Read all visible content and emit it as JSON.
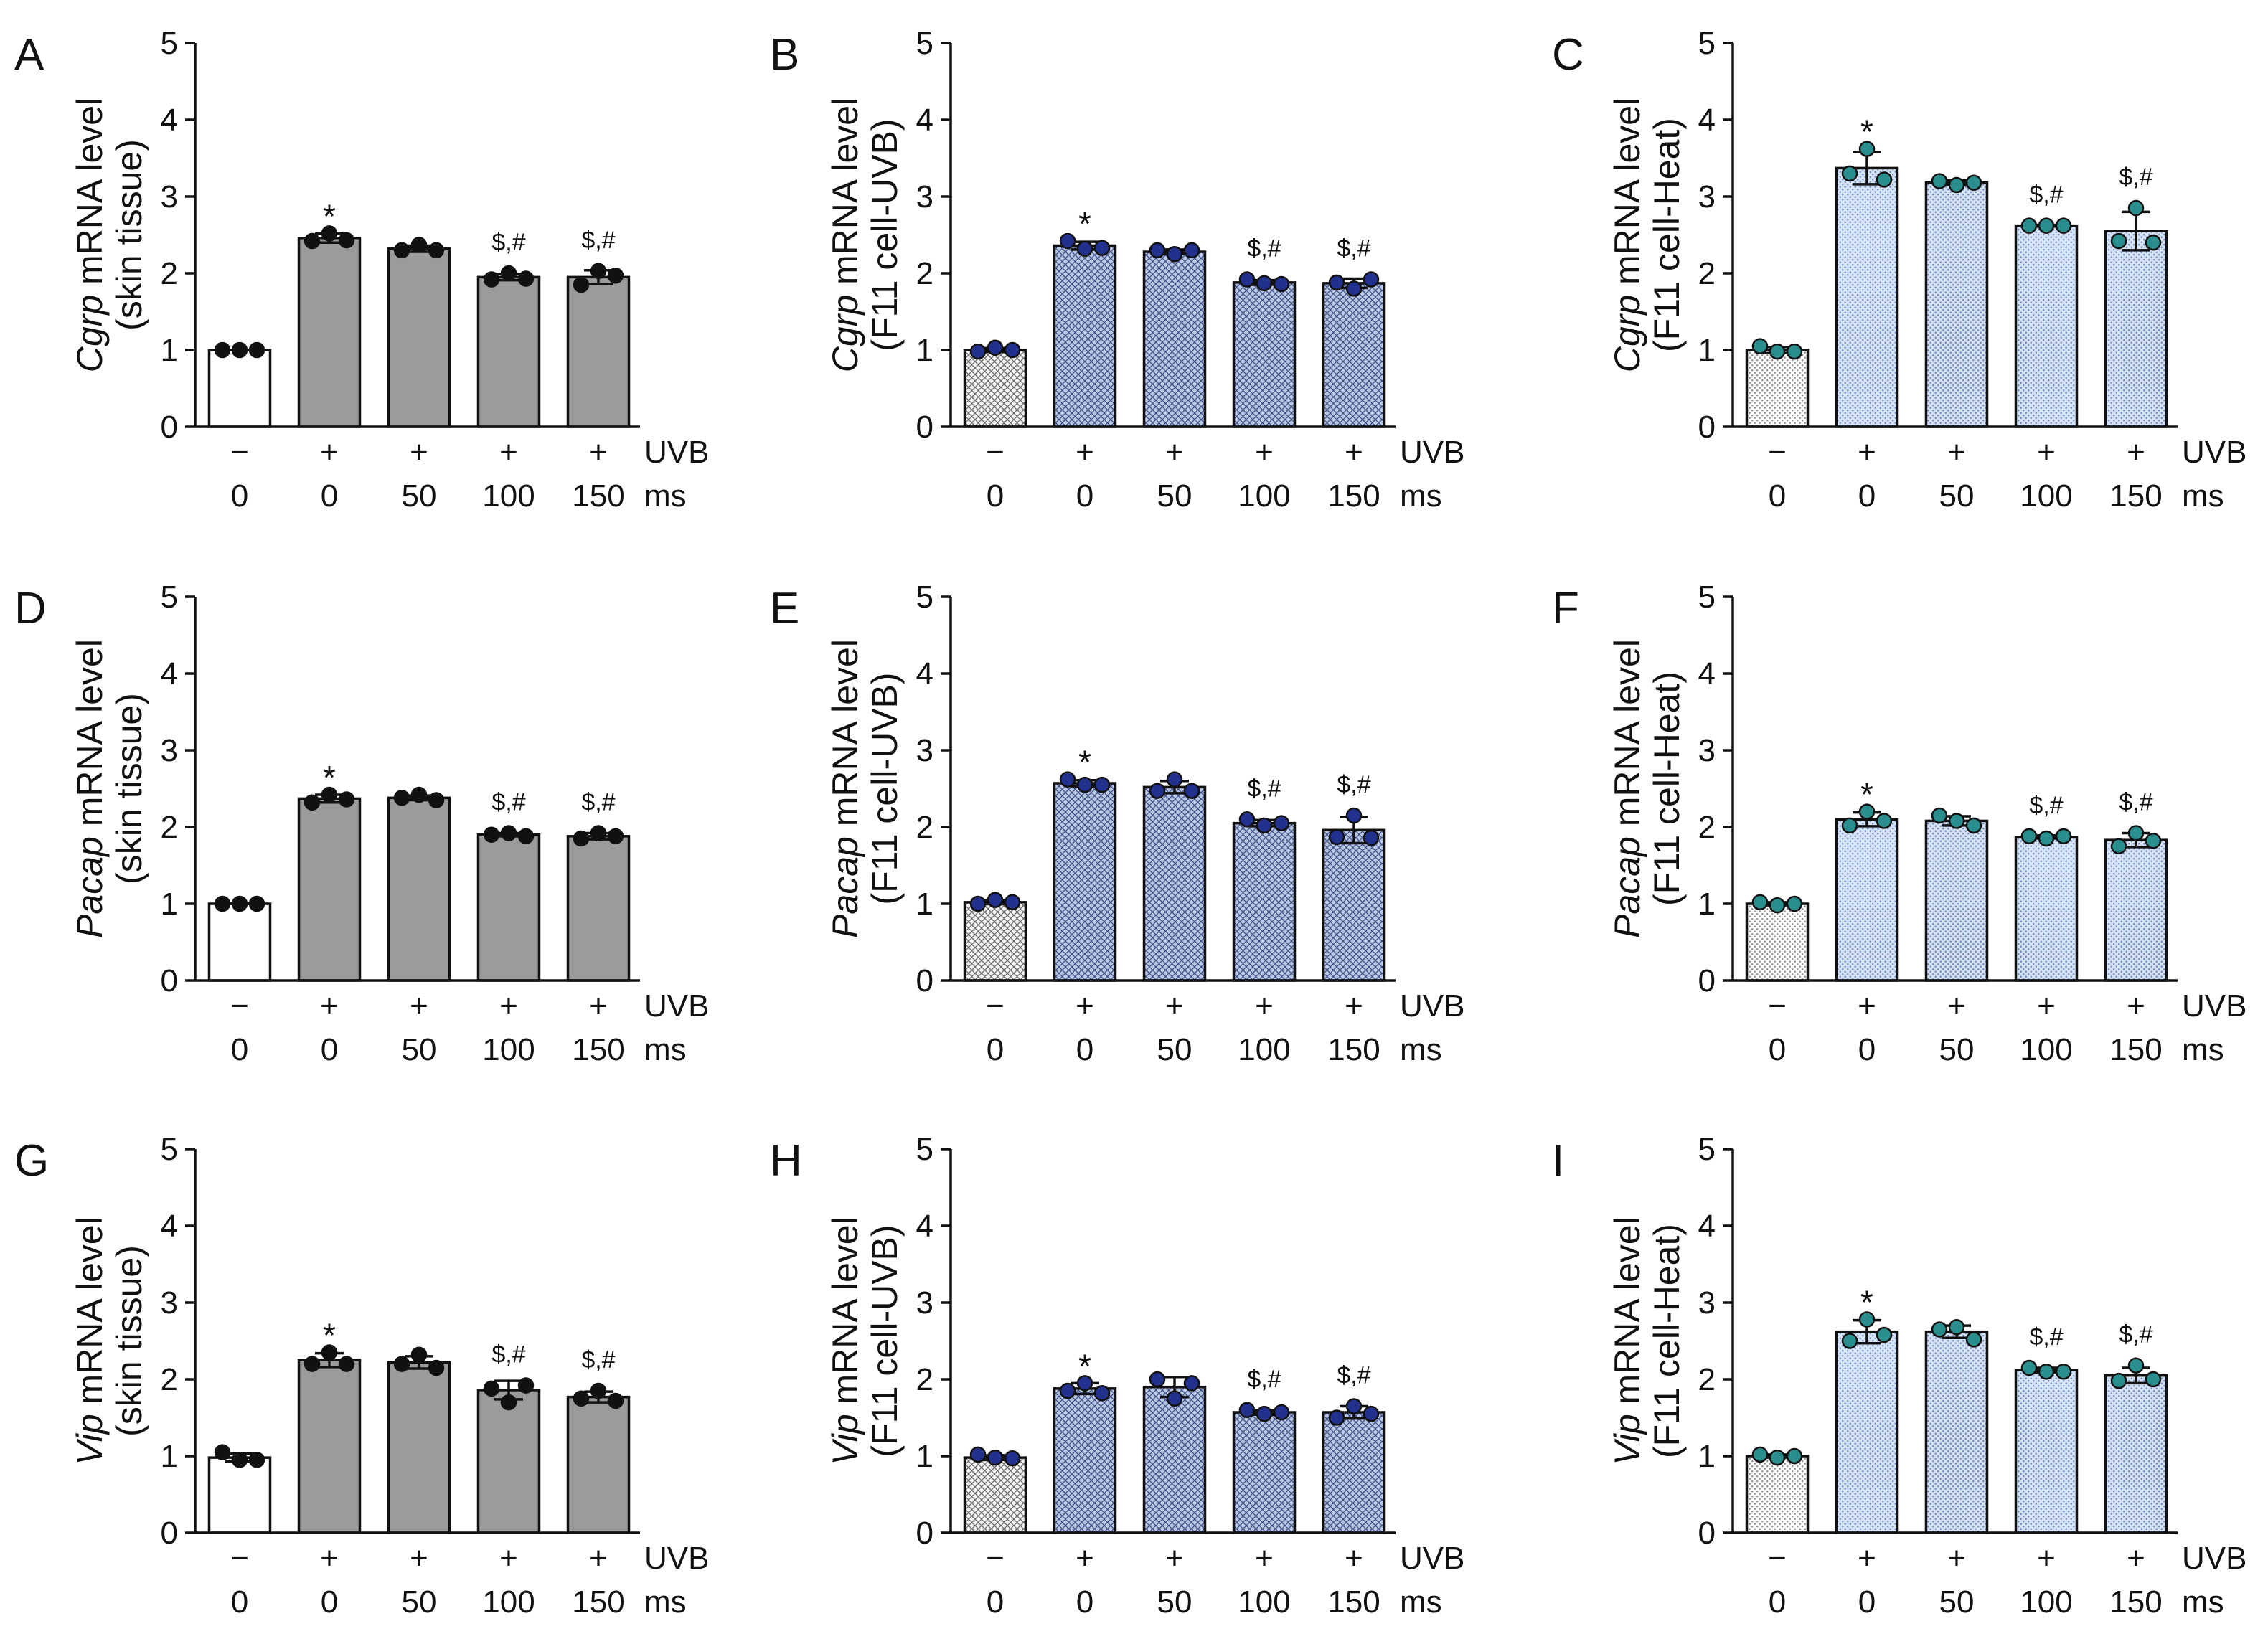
{
  "colors": {
    "skin_control": "#ffffff",
    "skin_treated": "#9b9b9b",
    "skin_dot": "#111111",
    "uvb_dot": "#23318e",
    "heat_dot": "#2b8e8e"
  },
  "chart_data": [
    {
      "panel": "A",
      "type": "bar",
      "gene": "Cgrp",
      "ylabel": "mRNA level",
      "sample": "(skin tissue)",
      "ylim": [
        0,
        5
      ],
      "yticks": [
        0,
        1,
        2,
        3,
        4,
        5
      ],
      "uvb": [
        "−",
        "+",
        "+",
        "+",
        "+"
      ],
      "uvb_label": "UVB",
      "ms": [
        "0",
        "0",
        "50",
        "100",
        "150"
      ],
      "ms_label": "ms",
      "values": [
        1.0,
        2.46,
        2.32,
        1.95,
        1.95
      ],
      "sd": [
        0.0,
        0.06,
        0.04,
        0.04,
        0.09
      ],
      "points": [
        [
          1.0,
          1.0,
          1.0
        ],
        [
          2.42,
          2.52,
          2.43
        ],
        [
          2.3,
          2.37,
          2.3
        ],
        [
          1.92,
          2.0,
          1.93
        ],
        [
          1.85,
          2.03,
          1.97
        ]
      ],
      "annotations": [
        null,
        "*",
        null,
        "$,#",
        "$,#"
      ]
    },
    {
      "panel": "B",
      "type": "bar",
      "gene": "Cgrp",
      "ylabel": "mRNA level",
      "sample": "(F11 cell-UVB)",
      "ylim": [
        0,
        5
      ],
      "yticks": [
        0,
        1,
        2,
        3,
        4,
        5
      ],
      "uvb": [
        "−",
        "+",
        "+",
        "+",
        "+"
      ],
      "uvb_label": "UVB",
      "ms": [
        "0",
        "0",
        "50",
        "100",
        "150"
      ],
      "ms_label": "ms",
      "values": [
        1.0,
        2.36,
        2.28,
        1.88,
        1.87
      ],
      "sd": [
        0.025,
        0.05,
        0.03,
        0.03,
        0.06
      ],
      "points": [
        [
          0.98,
          1.03,
          1.0
        ],
        [
          2.42,
          2.32,
          2.33
        ],
        [
          2.3,
          2.25,
          2.3
        ],
        [
          1.92,
          1.87,
          1.86
        ],
        [
          1.88,
          1.8,
          1.92
        ]
      ],
      "annotations": [
        null,
        "*",
        null,
        "$,#",
        "$,#"
      ]
    },
    {
      "panel": "C",
      "type": "bar",
      "gene": "Cgrp",
      "ylabel": "mRNA level",
      "sample": "(F11 cell-Heat)",
      "ylim": [
        0,
        5
      ],
      "yticks": [
        0,
        1,
        2,
        3,
        4,
        5
      ],
      "uvb": [
        "−",
        "+",
        "+",
        "+",
        "+"
      ],
      "uvb_label": "UVB",
      "ms": [
        "0",
        "0",
        "50",
        "100",
        "150"
      ],
      "ms_label": "ms",
      "values": [
        1.0,
        3.37,
        3.18,
        2.62,
        2.55
      ],
      "sd": [
        0.04,
        0.21,
        0.03,
        0.01,
        0.25
      ],
      "points": [
        [
          1.05,
          0.98,
          0.98
        ],
        [
          3.3,
          3.62,
          3.22
        ],
        [
          3.2,
          3.15,
          3.18
        ],
        [
          2.62,
          2.62,
          2.62
        ],
        [
          2.42,
          2.85,
          2.4
        ]
      ],
      "annotations": [
        null,
        "*",
        null,
        "$,#",
        "$,#"
      ]
    },
    {
      "panel": "D",
      "type": "bar",
      "gene": "Pacap",
      "ylabel": "mRNA level",
      "sample": "(skin tissue)",
      "ylim": [
        0,
        5
      ],
      "yticks": [
        0,
        1,
        2,
        3,
        4,
        5
      ],
      "uvb": [
        "−",
        "+",
        "+",
        "+",
        "+"
      ],
      "uvb_label": "UVB",
      "ms": [
        "0",
        "0",
        "50",
        "100",
        "150"
      ],
      "ms_label": "ms",
      "values": [
        1.0,
        2.37,
        2.38,
        1.9,
        1.88
      ],
      "sd": [
        0.0,
        0.05,
        0.03,
        0.02,
        0.04
      ],
      "points": [
        [
          1.0,
          1.0,
          1.0
        ],
        [
          2.32,
          2.42,
          2.36
        ],
        [
          2.38,
          2.42,
          2.35
        ],
        [
          1.9,
          1.92,
          1.88
        ],
        [
          1.85,
          1.92,
          1.88
        ]
      ],
      "annotations": [
        null,
        "*",
        null,
        "$,#",
        "$,#"
      ]
    },
    {
      "panel": "E",
      "type": "bar",
      "gene": "Pacap",
      "ylabel": "mRNA level",
      "sample": "(F11 cell-UVB)",
      "ylim": [
        0,
        5
      ],
      "yticks": [
        0,
        1,
        2,
        3,
        4,
        5
      ],
      "uvb": [
        "−",
        "+",
        "+",
        "+",
        "+"
      ],
      "uvb_label": "UVB",
      "ms": [
        "0",
        "0",
        "50",
        "100",
        "150"
      ],
      "ms_label": "ms",
      "values": [
        1.02,
        2.57,
        2.52,
        2.05,
        1.96
      ],
      "sd": [
        0.025,
        0.04,
        0.08,
        0.04,
        0.17
      ],
      "points": [
        [
          1.0,
          1.05,
          1.02
        ],
        [
          2.62,
          2.55,
          2.55
        ],
        [
          2.47,
          2.62,
          2.47
        ],
        [
          2.1,
          2.02,
          2.05
        ],
        [
          1.87,
          2.15,
          1.86
        ]
      ],
      "annotations": [
        null,
        "*",
        null,
        "$,#",
        "$,#"
      ]
    },
    {
      "panel": "F",
      "type": "bar",
      "gene": "Pacap",
      "ylabel": "mRNA level",
      "sample": "(F11 cell-Heat)",
      "ylim": [
        0,
        5
      ],
      "yticks": [
        0,
        1,
        2,
        3,
        4,
        5
      ],
      "uvb": [
        "−",
        "+",
        "+",
        "+",
        "+"
      ],
      "uvb_label": "UVB",
      "ms": [
        "0",
        "0",
        "50",
        "100",
        "150"
      ],
      "ms_label": "ms",
      "values": [
        1.0,
        2.1,
        2.08,
        1.87,
        1.83
      ],
      "sd": [
        0.02,
        0.09,
        0.06,
        0.02,
        0.09
      ],
      "points": [
        [
          1.02,
          0.98,
          1.0
        ],
        [
          2.02,
          2.2,
          2.08
        ],
        [
          2.15,
          2.08,
          2.02
        ],
        [
          1.88,
          1.85,
          1.88
        ],
        [
          1.75,
          1.92,
          1.82
        ]
      ],
      "annotations": [
        null,
        "*",
        null,
        "$,#",
        "$,#"
      ]
    },
    {
      "panel": "G",
      "type": "bar",
      "gene": "Vip",
      "ylabel": "mRNA level",
      "sample": "(skin tissue)",
      "ylim": [
        0,
        5
      ],
      "yticks": [
        0,
        1,
        2,
        3,
        4,
        5
      ],
      "uvb": [
        "−",
        "+",
        "+",
        "+",
        "+"
      ],
      "uvb_label": "UVB",
      "ms": [
        "0",
        "0",
        "50",
        "100",
        "150"
      ],
      "ms_label": "ms",
      "values": [
        0.98,
        2.25,
        2.22,
        1.86,
        1.77
      ],
      "sd": [
        0.05,
        0.09,
        0.08,
        0.12,
        0.07
      ],
      "points": [
        [
          1.05,
          0.95,
          0.95
        ],
        [
          2.2,
          2.35,
          2.2
        ],
        [
          2.2,
          2.32,
          2.15
        ],
        [
          1.88,
          1.7,
          1.92
        ],
        [
          1.75,
          1.85,
          1.72
        ]
      ],
      "annotations": [
        null,
        "*",
        null,
        "$,#",
        "$,#"
      ]
    },
    {
      "panel": "H",
      "type": "bar",
      "gene": "Vip",
      "ylabel": "mRNA level",
      "sample": "(F11 cell-UVB)",
      "ylim": [
        0,
        5
      ],
      "yticks": [
        0,
        1,
        2,
        3,
        4,
        5
      ],
      "uvb": [
        "−",
        "+",
        "+",
        "+",
        "+"
      ],
      "uvb_label": "UVB",
      "ms": [
        "0",
        "0",
        "50",
        "100",
        "150"
      ],
      "ms_label": "ms",
      "values": [
        0.98,
        1.88,
        1.9,
        1.57,
        1.57
      ],
      "sd": [
        0.03,
        0.07,
        0.13,
        0.03,
        0.08
      ],
      "points": [
        [
          1.02,
          0.98,
          0.97
        ],
        [
          1.85,
          1.95,
          1.82
        ],
        [
          2.0,
          1.75,
          1.95
        ],
        [
          1.6,
          1.55,
          1.57
        ],
        [
          1.5,
          1.65,
          1.55
        ]
      ],
      "annotations": [
        null,
        "*",
        null,
        "$,#",
        "$,#"
      ]
    },
    {
      "panel": "I",
      "type": "bar",
      "gene": "Vip",
      "ylabel": "mRNA level",
      "sample": "(F11 cell-Heat)",
      "ylim": [
        0,
        5
      ],
      "yticks": [
        0,
        1,
        2,
        3,
        4,
        5
      ],
      "uvb": [
        "−",
        "+",
        "+",
        "+",
        "+"
      ],
      "uvb_label": "UVB",
      "ms": [
        "0",
        "0",
        "50",
        "100",
        "150"
      ],
      "ms_label": "ms",
      "values": [
        1.0,
        2.62,
        2.62,
        2.12,
        2.05
      ],
      "sd": [
        0.02,
        0.15,
        0.08,
        0.03,
        0.1
      ],
      "points": [
        [
          1.02,
          0.98,
          1.0
        ],
        [
          2.5,
          2.78,
          2.58
        ],
        [
          2.65,
          2.68,
          2.52
        ],
        [
          2.15,
          2.1,
          2.1
        ],
        [
          1.98,
          2.18,
          2.0
        ]
      ],
      "annotations": [
        null,
        "*",
        null,
        "$,#",
        "$,#"
      ]
    }
  ]
}
